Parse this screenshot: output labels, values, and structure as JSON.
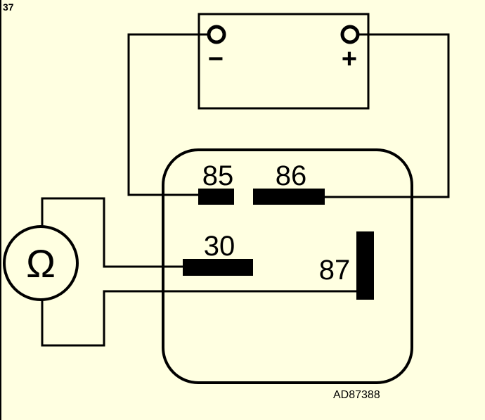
{
  "figure_number": "37",
  "battery": {
    "negative_symbol": "−",
    "positive_symbol": "+"
  },
  "relay": {
    "terminals": [
      {
        "id": "85",
        "label": "85"
      },
      {
        "id": "86",
        "label": "86"
      },
      {
        "id": "30",
        "label": "30"
      },
      {
        "id": "87",
        "label": "87"
      }
    ]
  },
  "meter": {
    "symbol": "Ω",
    "icon": "ohmmeter-icon"
  },
  "reference_code": "AD87388",
  "colors": {
    "background": "#ffffe1",
    "ink": "#000000"
  }
}
